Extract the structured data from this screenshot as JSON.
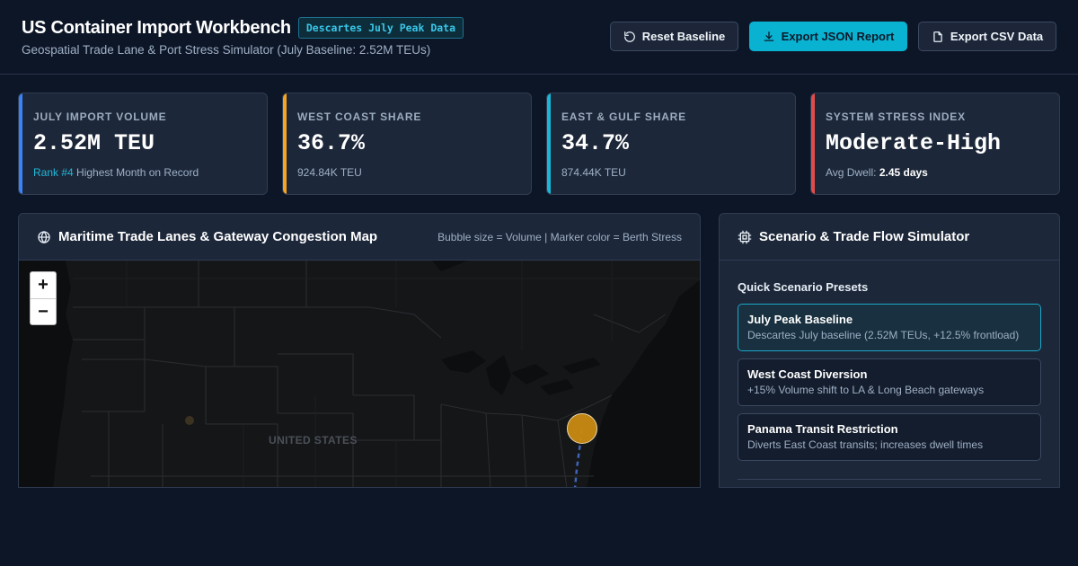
{
  "header": {
    "title": "US Container Import Workbench",
    "badge": "Descartes July Peak Data",
    "subtitle": "Geospatial Trade Lane & Port Stress Simulator (July Baseline: 2.52M TEUs)",
    "buttons": {
      "reset": "Reset Baseline",
      "export_json": "Export JSON Report",
      "export_csv": "Export CSV Data"
    }
  },
  "kpis": [
    {
      "label": "JULY IMPORT VOLUME",
      "value": "2.52M TEU",
      "foot_highlight": "Rank #4",
      "foot_text": "Highest Month on Record",
      "accent": "#3b82f6"
    },
    {
      "label": "WEST COAST SHARE",
      "value": "36.7%",
      "foot_text": "924.84K TEU",
      "accent": "#f5a524"
    },
    {
      "label": "EAST & GULF SHARE",
      "value": "34.7%",
      "foot_text": "874.44K TEU",
      "accent": "#1bb8d6"
    },
    {
      "label": "SYSTEM STRESS INDEX",
      "value": "Moderate-High",
      "foot_text": "Avg Dwell:",
      "foot_bold": "2.45 days",
      "accent": "#e14b4b"
    }
  ],
  "map_panel": {
    "title": "Maritime Trade Lanes & Gateway Congestion Map",
    "hint": "Bubble size = Volume | Marker color = Berth Stress",
    "zoom_in": "+",
    "zoom_out": "−",
    "country_label": "UNITED STATES",
    "port_marker_color": "#c98a12",
    "lane_color": "#3f64b8"
  },
  "simulator": {
    "title": "Scenario & Trade Flow Simulator",
    "presets_label": "Quick Scenario Presets",
    "presets": [
      {
        "title": "July Peak Baseline",
        "desc": "Descartes July baseline (2.52M TEUs, +12.5% frontload)",
        "active": true
      },
      {
        "title": "West Coast Diversion",
        "desc": "+15% Volume shift to LA & Long Beach gateways",
        "active": false
      },
      {
        "title": "Panama Transit Restriction",
        "desc": "Diverts East Coast transits; increases dwell times",
        "active": false
      }
    ]
  }
}
